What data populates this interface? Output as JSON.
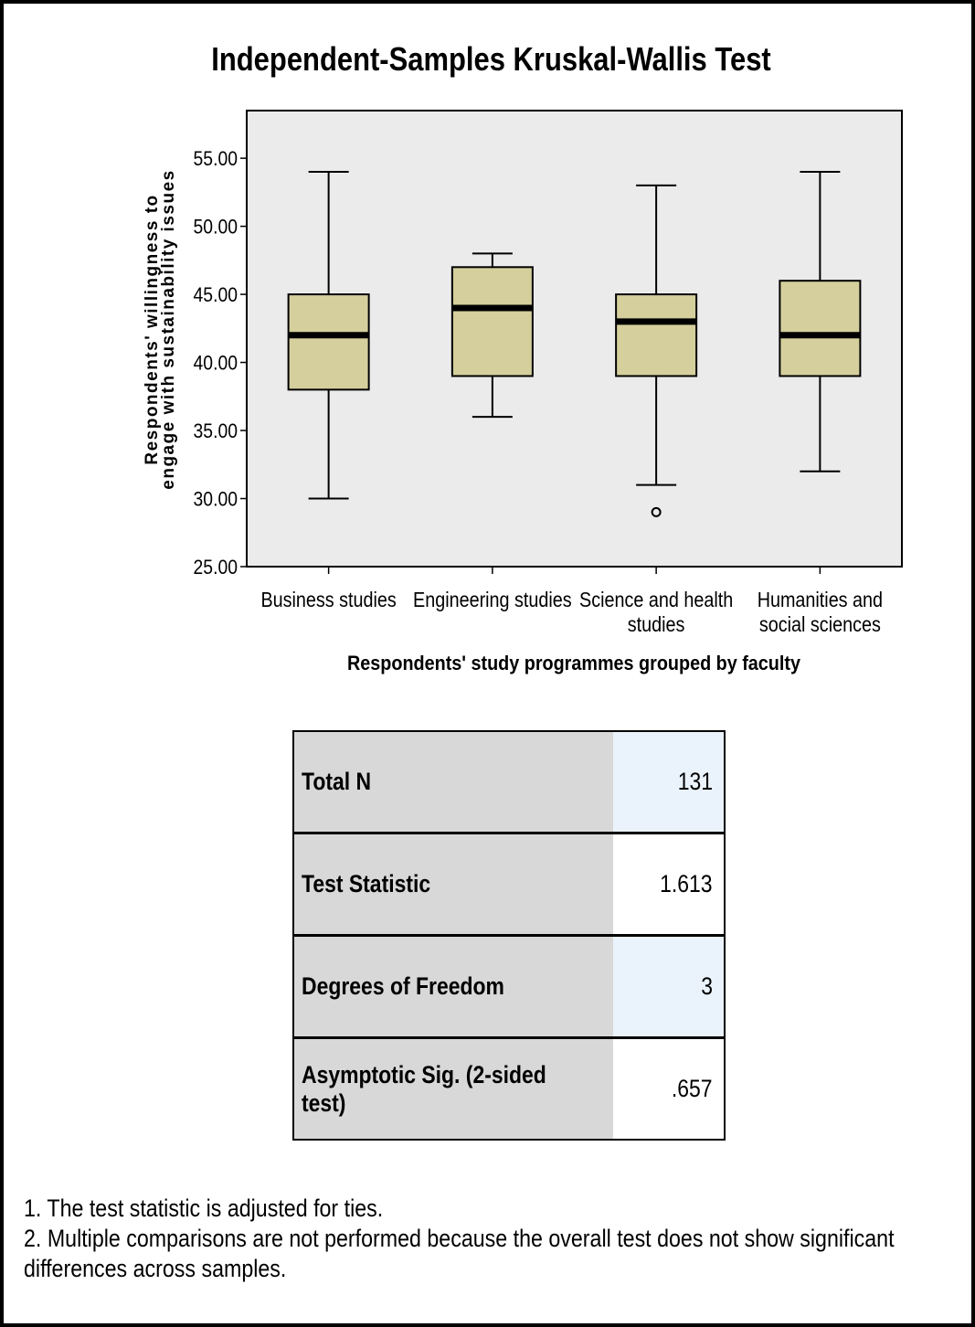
{
  "title": "Independent-Samples Kruskal-Wallis Test",
  "chart_data": {
    "type": "boxplot",
    "categories": [
      "Business studies",
      "Engineering studies",
      "Science and health studies",
      "Humanities and social sciences"
    ],
    "category_lines": [
      [
        "Business studies"
      ],
      [
        "Engineering studies"
      ],
      [
        "Science and health",
        "studies"
      ],
      [
        "Humanities and",
        "social sciences"
      ]
    ],
    "boxes": [
      {
        "whisker_low": 30,
        "q1": 38,
        "median": 42,
        "q3": 45,
        "whisker_high": 54,
        "outliers": []
      },
      {
        "whisker_low": 36,
        "q1": 39,
        "median": 44,
        "q3": 47,
        "whisker_high": 48,
        "outliers": []
      },
      {
        "whisker_low": 31,
        "q1": 39,
        "median": 43,
        "q3": 45,
        "whisker_high": 53,
        "outliers": [
          29
        ]
      },
      {
        "whisker_low": 32,
        "q1": 39,
        "median": 42,
        "q3": 46,
        "whisker_high": 54,
        "outliers": []
      }
    ],
    "ylabel_lines": [
      "Respondents' willingness to",
      "engage with sustainability issues"
    ],
    "xlabel": "Respondents' study programmes grouped by faculty",
    "ylim": [
      25,
      58.5
    ],
    "yticks": [
      "25.00",
      "30.00",
      "35.00",
      "40.00",
      "45.00",
      "50.00",
      "55.00"
    ],
    "box_color": "#d4cf9c",
    "plot_background": "#ebebeb"
  },
  "table": [
    {
      "label": "Total N",
      "value": "131"
    },
    {
      "label": "Test Statistic",
      "value": "1.613"
    },
    {
      "label": "Degrees of Freedom",
      "value": "3"
    },
    {
      "label": "Asymptotic Sig. (2-sided test)",
      "value": ".657"
    }
  ],
  "footnotes": [
    "1.  The test statistic is adjusted for ties.",
    "2.  Multiple comparisons are not performed because the overall test does not show significant",
    "differences across samples."
  ]
}
